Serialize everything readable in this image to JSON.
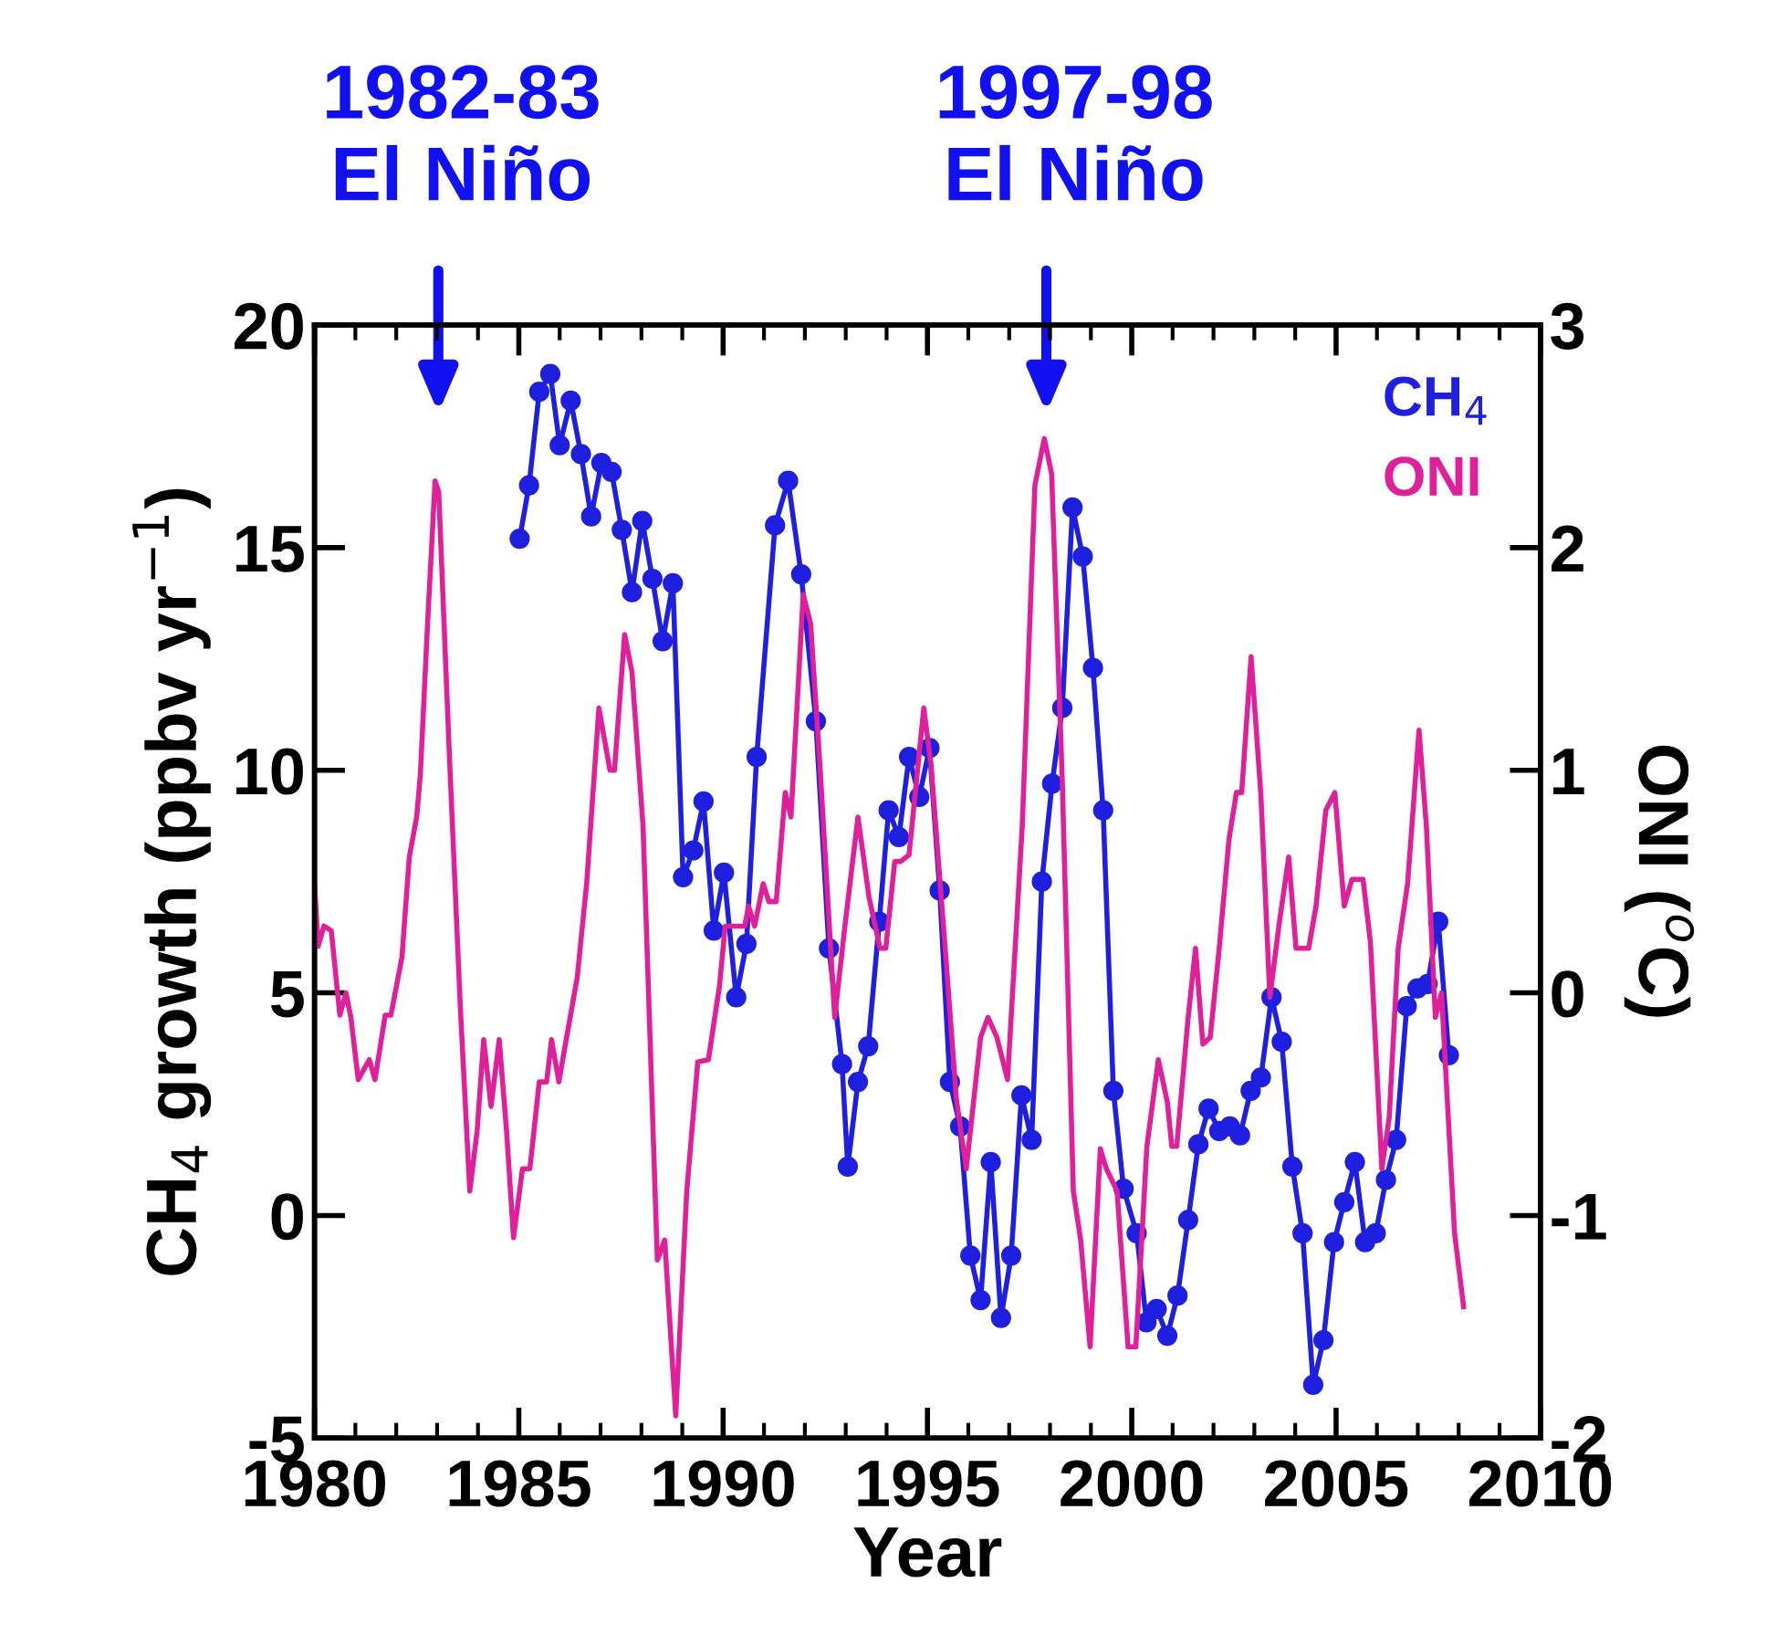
{
  "chart_data": {
    "type": "line",
    "xlabel": "Year",
    "ylabel": "CH$_{4}$ growth (ppbv yr$^{−1}$)",
    "y2label": "ONI ($^{o}$C)",
    "xlim": [
      1980,
      2010
    ],
    "xticks": [
      1980,
      1985,
      1990,
      1995,
      2000,
      2005,
      2010
    ],
    "ylim": [
      -5,
      20
    ],
    "yticks": [
      -5,
      0,
      5,
      10,
      15,
      20
    ],
    "y2lim": [
      -2,
      3
    ],
    "y2ticks": [
      -2,
      -1,
      0,
      1,
      2,
      3
    ],
    "legend": "top right",
    "grid": false,
    "annotations": [
      "1982-83\nEl Niño",
      "1997-98\nEl Niño"
    ],
    "series": [
      {
        "name": "CH$_{4}$",
        "color": "#1f1fe0",
        "marker": "circle",
        "x": [
          1985.02,
          1985.25,
          1985.5,
          1985.77,
          1986.0,
          1986.27,
          1986.52,
          1986.77,
          1987.02,
          1987.27,
          1987.52,
          1987.77,
          1988.02,
          1988.27,
          1988.52,
          1988.77,
          1989.02,
          1989.27,
          1989.52,
          1989.77,
          1990.02,
          1990.32,
          1990.57,
          1990.82,
          1991.27,
          1991.59,
          1991.91,
          1992.27,
          1992.59,
          1992.91,
          1993.05,
          1993.3,
          1993.55,
          1993.82,
          1994.05,
          1994.3,
          1994.55,
          1994.8,
          1995.05,
          1995.3,
          1995.55,
          1995.8,
          1996.05,
          1996.3,
          1996.55,
          1996.8,
          1997.05,
          1997.3,
          1997.55,
          1997.8,
          1998.05,
          1998.3,
          1998.55,
          1998.8,
          1999.05,
          1999.3,
          1999.55,
          1999.8,
          2000.12,
          2000.36,
          2000.61,
          2000.87,
          2001.12,
          2001.38,
          2001.63,
          2001.88,
          2002.14,
          2002.4,
          2002.65,
          2002.91,
          2003.16,
          2003.42,
          2003.67,
          2003.93,
          2004.18,
          2004.44,
          2004.69,
          2004.95,
          2005.2,
          2005.46,
          2005.71,
          2005.97,
          2006.22,
          2006.47,
          2006.73,
          2006.99,
          2007.24,
          2007.5,
          2007.76
        ],
        "values": [
          15.2,
          16.4,
          18.5,
          18.9,
          17.3,
          18.3,
          17.1,
          15.7,
          16.9,
          16.7,
          15.4,
          14.0,
          15.6,
          14.3,
          12.9,
          14.2,
          7.6,
          8.2,
          9.3,
          6.4,
          7.7,
          4.9,
          6.1,
          10.3,
          15.5,
          16.5,
          14.4,
          11.1,
          6.0,
          3.4,
          1.1,
          3.0,
          3.8,
          6.6,
          9.1,
          8.5,
          10.3,
          9.4,
          10.5,
          7.3,
          3.0,
          2.0,
          -0.9,
          -1.9,
          1.2,
          -2.3,
          -0.9,
          2.7,
          1.7,
          7.5,
          9.7,
          11.4,
          15.9,
          14.8,
          12.3,
          9.1,
          2.8,
          0.6,
          -0.4,
          -2.4,
          -2.1,
          -2.7,
          -1.8,
          -0.1,
          1.6,
          2.4,
          1.9,
          2.0,
          1.8,
          2.8,
          3.1,
          4.9,
          3.9,
          1.1,
          -0.4,
          -3.8,
          -2.8,
          -0.6,
          0.3,
          1.2,
          -0.6,
          -0.4,
          0.8,
          1.7,
          4.7,
          5.1,
          5.2,
          6.6,
          3.6
        ]
      },
      {
        "name": "ONI",
        "color": "#e0209a",
        "marker": "none",
        "axis": "y2",
        "x": [
          1980.0,
          1980.09,
          1980.23,
          1980.41,
          1980.62,
          1980.77,
          1980.89,
          1981.07,
          1981.34,
          1981.48,
          1981.73,
          1981.87,
          1982.14,
          1982.32,
          1982.5,
          1982.59,
          1982.77,
          1982.95,
          1983.04,
          1983.3,
          1983.57,
          1983.8,
          1983.98,
          1984.14,
          1984.32,
          1984.52,
          1984.7,
          1984.87,
          1985.09,
          1985.27,
          1985.5,
          1985.68,
          1985.8,
          1985.98,
          1986.16,
          1986.43,
          1986.66,
          1986.96,
          1987.23,
          1987.34,
          1987.59,
          1987.77,
          1988.04,
          1988.39,
          1988.57,
          1988.84,
          1989.11,
          1989.38,
          1989.64,
          1989.91,
          1990.05,
          1990.53,
          1990.62,
          1990.77,
          1990.98,
          1991.12,
          1991.3,
          1991.52,
          1991.66,
          1991.96,
          1992.14,
          1992.37,
          1992.73,
          1992.98,
          1993.3,
          1993.57,
          1993.84,
          1993.98,
          1994.2,
          1994.34,
          1994.55,
          1994.91,
          1995.09,
          1995.45,
          1995.71,
          1995.95,
          1996.3,
          1996.48,
          1996.7,
          1996.96,
          1997.32,
          1997.63,
          1997.86,
          1998.04,
          1998.3,
          1998.57,
          1998.75,
          1998.98,
          1999.23,
          1999.38,
          1999.64,
          1999.91,
          2000.1,
          2000.37,
          2000.65,
          2000.87,
          2000.98,
          2001.1,
          2001.38,
          2001.56,
          2001.74,
          2001.92,
          2002.14,
          2002.38,
          2002.56,
          2002.69,
          2002.92,
          2003.16,
          2003.38,
          2003.6,
          2003.84,
          2004.02,
          2004.33,
          2004.51,
          2004.75,
          2004.97,
          2005.2,
          2005.39,
          2005.66,
          2005.84,
          2006.12,
          2006.3,
          2006.52,
          2006.75,
          2007.03,
          2007.21,
          2007.43,
          2007.58,
          2007.9,
          2008.12
        ],
        "values": [
          0.49,
          0.21,
          0.3,
          0.28,
          -0.1,
          0.0,
          -0.11,
          -0.39,
          -0.3,
          -0.39,
          -0.1,
          -0.1,
          0.16,
          0.61,
          0.79,
          0.98,
          1.67,
          2.3,
          2.25,
          1.07,
          -0.07,
          -0.89,
          -0.62,
          -0.21,
          -0.51,
          -0.21,
          -0.62,
          -1.1,
          -0.79,
          -0.79,
          -0.4,
          -0.4,
          -0.21,
          -0.4,
          -0.21,
          0.07,
          0.49,
          1.28,
          1.0,
          1.0,
          1.61,
          1.44,
          0.75,
          -1.2,
          -1.11,
          -1.9,
          -0.89,
          -0.31,
          -0.3,
          0.03,
          0.3,
          0.3,
          0.39,
          0.3,
          0.49,
          0.41,
          0.41,
          0.9,
          0.79,
          1.79,
          1.66,
          1.02,
          -0.11,
          0.3,
          0.79,
          0.43,
          0.2,
          0.2,
          0.59,
          0.59,
          0.62,
          1.28,
          1.02,
          0.16,
          -0.48,
          -0.79,
          -0.2,
          -0.11,
          -0.2,
          -0.39,
          0.75,
          2.28,
          2.49,
          2.33,
          0.95,
          -0.89,
          -1.11,
          -1.59,
          -0.7,
          -0.79,
          -0.89,
          -1.59,
          -1.59,
          -0.69,
          -0.3,
          -0.49,
          -0.69,
          -0.69,
          -0.11,
          0.2,
          -0.23,
          -0.2,
          0.2,
          0.69,
          0.9,
          0.9,
          1.51,
          0.89,
          -0.02,
          0.3,
          0.61,
          0.2,
          0.2,
          0.39,
          0.82,
          0.9,
          0.39,
          0.51,
          0.51,
          0.23,
          -0.79,
          -0.56,
          0.2,
          0.49,
          1.18,
          0.75,
          -0.11,
          0.0,
          -1.08,
          -1.41
        ]
      }
    ]
  }
}
